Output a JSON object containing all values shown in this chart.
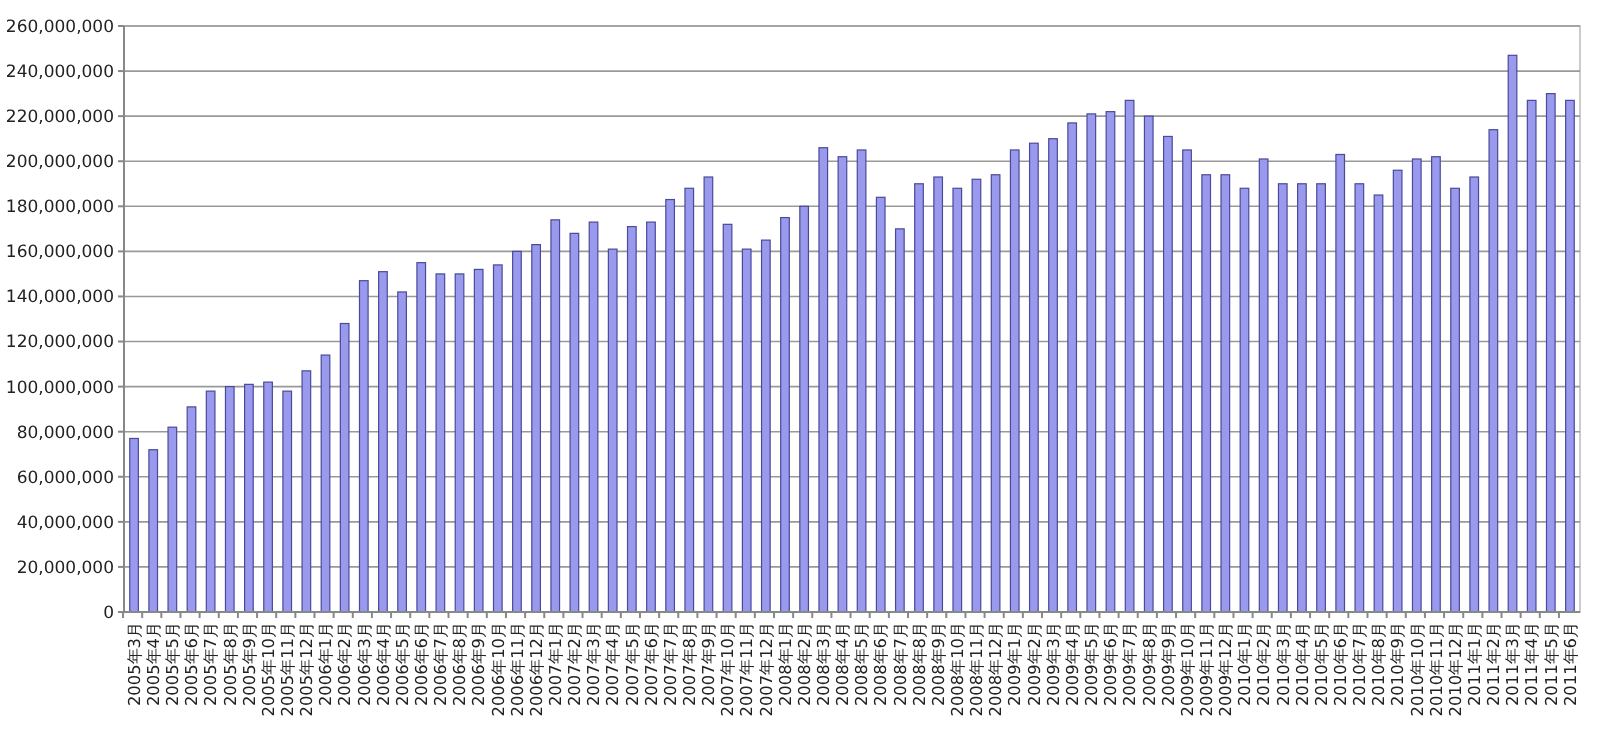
{
  "chart_data": {
    "type": "bar",
    "categories": [
      "2005年3月",
      "2005年4月",
      "2005年5月",
      "2005年6月",
      "2005年7月",
      "2005年8月",
      "2005年9月",
      "2005年10月",
      "2005年11月",
      "2005年12月",
      "2006年1月",
      "2006年2月",
      "2006年3月",
      "2006年4月",
      "2006年5月",
      "2006年6月",
      "2006年7月",
      "2006年8月",
      "2006年9月",
      "2006年10月",
      "2006年11月",
      "2006年12月",
      "2007年1月",
      "2007年2月",
      "2007年3月",
      "2007年4月",
      "2007年5月",
      "2007年6月",
      "2007年7月",
      "2007年8月",
      "2007年9月",
      "2007年10月",
      "2007年11月",
      "2007年12月",
      "2008年1月",
      "2008年2月",
      "2008年3月",
      "2008年4月",
      "2008年5月",
      "2008年6月",
      "2008年7月",
      "2008年8月",
      "2008年9月",
      "2008年10月",
      "2008年11月",
      "2008年12月",
      "2009年1月",
      "2009年2月",
      "2009年3月",
      "2009年4月",
      "2009年5月",
      "2009年6月",
      "2009年7月",
      "2009年8月",
      "2009年9月",
      "2009年10月",
      "2009年11月",
      "2009年12月",
      "2010年1月",
      "2010年2月",
      "2010年3月",
      "2010年4月",
      "2010年5月",
      "2010年6月",
      "2010年7月",
      "2010年8月",
      "2010年9月",
      "2010年10月",
      "2010年11月",
      "2010年12月",
      "2011年1月",
      "2011年2月",
      "2011年3月",
      "2011年4月",
      "2011年5月",
      "2011年6月"
    ],
    "values": [
      77000000,
      72000000,
      82000000,
      91000000,
      98000000,
      100000000,
      101000000,
      102000000,
      98000000,
      107000000,
      114000000,
      128000000,
      147000000,
      151000000,
      142000000,
      155000000,
      150000000,
      150000000,
      152000000,
      154000000,
      160000000,
      163000000,
      174000000,
      168000000,
      173000000,
      161000000,
      171000000,
      173000000,
      183000000,
      188000000,
      193000000,
      172000000,
      161000000,
      165000000,
      175000000,
      180000000,
      206000000,
      202000000,
      205000000,
      184000000,
      170000000,
      190000000,
      193000000,
      188000000,
      192000000,
      194000000,
      205000000,
      208000000,
      210000000,
      217000000,
      221000000,
      222000000,
      227000000,
      220000000,
      211000000,
      205000000,
      194000000,
      194000000,
      188000000,
      201000000,
      190000000,
      190000000,
      190000000,
      203000000,
      190000000,
      185000000,
      196000000,
      201000000,
      202000000,
      188000000,
      193000000,
      214000000,
      247000000,
      227000000,
      230000000,
      227000000
    ],
    "color": "#9999ee",
    "ylim": [
      0,
      260000000
    ],
    "yticks": [
      {
        "value": 0,
        "label": "0"
      },
      {
        "value": 20000000,
        "label": "20,000,000"
      },
      {
        "value": 40000000,
        "label": "40,000,000"
      },
      {
        "value": 60000000,
        "label": "60,000,000"
      },
      {
        "value": 80000000,
        "label": "80,000,000"
      },
      {
        "value": 100000000,
        "label": "100,000,000"
      },
      {
        "value": 120000000,
        "label": "120,000,000"
      },
      {
        "value": 140000000,
        "label": "140,000,000"
      },
      {
        "value": 160000000,
        "label": "160,000,000"
      },
      {
        "value": 180000000,
        "label": "180,000,000"
      },
      {
        "value": 200000000,
        "label": "200,000,000"
      },
      {
        "value": 220000000,
        "label": "220,000,000"
      },
      {
        "value": 240000000,
        "label": "240,000,000"
      },
      {
        "value": 260000000,
        "label": "260,000,000"
      }
    ],
    "grid": "y"
  }
}
